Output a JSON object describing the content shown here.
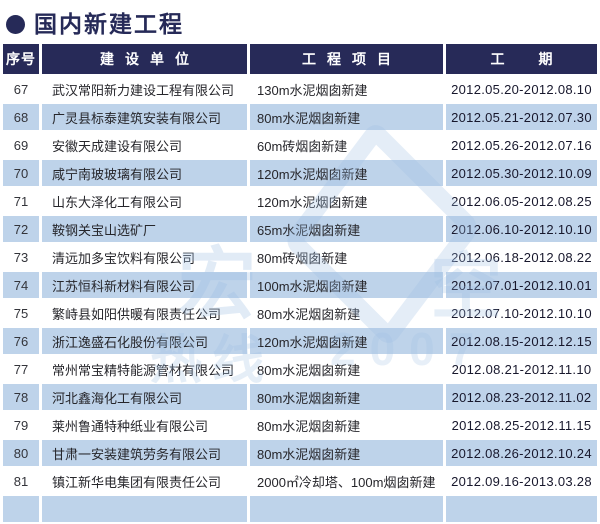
{
  "page": {
    "title": "国内新建工程"
  },
  "table": {
    "columns": {
      "no": "序号",
      "company": "建设单位",
      "project": "工程项目",
      "period": "工期"
    },
    "rows": [
      {
        "no": "67",
        "company": "武汉常阳新力建设工程有限公司",
        "project": "130m水泥烟囱新建",
        "period": "2012.05.20-2012.08.10"
      },
      {
        "no": "68",
        "company": "广灵县标泰建筑安装有限公司",
        "project": "80m水泥烟囱新建",
        "period": "2012.05.21-2012.07.30"
      },
      {
        "no": "69",
        "company": "安徽天成建设有限公司",
        "project": "60m砖烟囱新建",
        "period": "2012.05.26-2012.07.16"
      },
      {
        "no": "70",
        "company": "咸宁南玻玻璃有限公司",
        "project": "120m水泥烟囱新建",
        "period": "2012.05.30-2012.10.09"
      },
      {
        "no": "71",
        "company": "山东大泽化工有限公司",
        "project": "120m水泥烟囱新建",
        "period": "2012.06.05-2012.08.25"
      },
      {
        "no": "72",
        "company": "鞍钢关宝山选矿厂",
        "project": "65m水泥烟囱新建",
        "period": "2012.06.10-2012.10.10"
      },
      {
        "no": "73",
        "company": "清远加多宝饮料有限公司",
        "project": "80m砖烟囱新建",
        "period": "2012.06.18-2012.08.22"
      },
      {
        "no": "74",
        "company": "江苏恒科新材料有限公司",
        "project": "100m水泥烟囱新建",
        "period": "2012.07.01-2012.10.01"
      },
      {
        "no": "75",
        "company": "繁峙县如阳供暖有限责任公司",
        "project": "80m水泥烟囱新建",
        "period": "2012.07.10-2012.10.10"
      },
      {
        "no": "76",
        "company": "浙江逸盛石化股份有限公司",
        "project": "120m水泥烟囱新建",
        "period": "2012.08.15-2012.12.15"
      },
      {
        "no": "77",
        "company": "常州常宝精特能源管材有限公司",
        "project": "80m水泥烟囱新建",
        "period": "2012.08.21-2012.11.10"
      },
      {
        "no": "78",
        "company": "河北鑫海化工有限公司",
        "project": "80m水泥烟囱新建",
        "period": "2012.08.23-2012.11.02"
      },
      {
        "no": "79",
        "company": "莱州鲁通特种纸业有限公司",
        "project": "80m水泥烟囱新建",
        "period": "2012.08.25-2012.11.15"
      },
      {
        "no": "80",
        "company": "甘肃一安装建筑劳务有限公司",
        "project": "80m水泥烟囱新建",
        "period": "2012.08.26-2012.10.24"
      },
      {
        "no": "81",
        "company": "镇江新华电集团有限责任公司",
        "project": "2000㎡冷却塔、100m烟囱新建",
        "period": "2012.09.16-2013.03.28"
      }
    ]
  },
  "watermark": {
    "glyph_a": "宏",
    "glyph_b": "空",
    "hotline_label": "热线",
    "digits": "2007"
  },
  "colors": {
    "navy": "#272a58",
    "stripe_blue": "#bed3ea",
    "watermark_blue": "#9dbfe4"
  }
}
